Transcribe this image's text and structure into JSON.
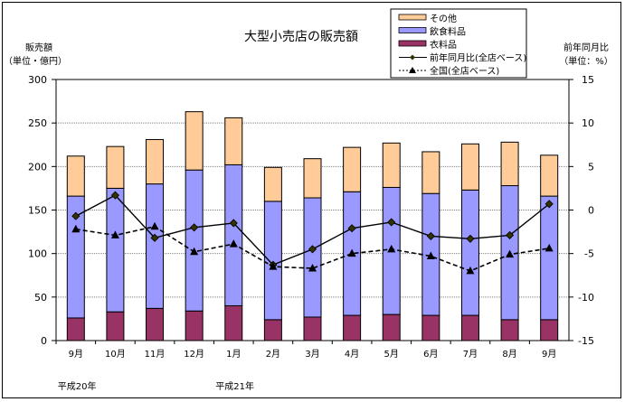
{
  "chart_data": {
    "type": "bar",
    "title": "大型小売店の販売額",
    "left_axis": {
      "label_line1": "販売額",
      "label_line2": "（単位・億円）",
      "range": [
        0,
        300
      ],
      "ticks": [
        "0",
        "50",
        "100",
        "150",
        "200",
        "250",
        "300"
      ],
      "tick_values": [
        0,
        50,
        100,
        150,
        200,
        250,
        300
      ]
    },
    "right_axis": {
      "label_line1": "前年同月比",
      "label_line2": "（単位：%）",
      "range": [
        -15,
        15
      ],
      "ticks": [
        "-15",
        "-10",
        "-5",
        "0",
        "5",
        "10",
        "15"
      ],
      "tick_values": [
        -15,
        -10,
        -5,
        0,
        5,
        10,
        15
      ]
    },
    "grid": true,
    "legend_position": "top-right",
    "categories": [
      "9月",
      "10月",
      "11月",
      "12月",
      "1月",
      "2月",
      "3月",
      "4月",
      "5月",
      "6月",
      "7月",
      "8月",
      "9月"
    ],
    "era_labels": [
      {
        "text": "平成20年",
        "category_index": 0
      },
      {
        "text": "平成21年",
        "category_index": 4
      }
    ],
    "stacked_series": [
      {
        "name": "衣料品",
        "color": "#993366",
        "values": [
          26,
          33,
          37,
          34,
          40,
          24,
          27,
          29,
          30,
          29,
          29,
          24,
          24
        ]
      },
      {
        "name": "飲食料品",
        "color": "#9999ff",
        "values": [
          140,
          142,
          143,
          162,
          162,
          136,
          137,
          142,
          146,
          140,
          144,
          154,
          142
        ]
      },
      {
        "name": "その他",
        "color": "#ffcc99",
        "values": [
          46,
          48,
          51,
          67,
          54,
          39,
          45,
          51,
          51,
          48,
          53,
          50,
          47
        ]
      }
    ],
    "line_series": [
      {
        "name": "前年同月比(全店ベース)",
        "marker": "diamond",
        "dash": "solid",
        "axis": "right",
        "values": [
          -0.7,
          1.7,
          -3.2,
          -2.0,
          -1.5,
          -6.3,
          -4.5,
          -2.1,
          -1.4,
          -3.0,
          -3.3,
          -2.9,
          0.7
        ]
      },
      {
        "name": "全国(全店ベース)",
        "marker": "triangle",
        "dash": "dashed",
        "axis": "right",
        "values": [
          -2.2,
          -2.9,
          -1.9,
          -4.8,
          -3.9,
          -6.5,
          -6.7,
          -5.0,
          -4.5,
          -5.3,
          -7.0,
          -5.1,
          -4.4
        ]
      }
    ],
    "legend": [
      {
        "label": "その他",
        "kind": "bar",
        "color": "#ffcc99"
      },
      {
        "label": "飲食料品",
        "kind": "bar",
        "color": "#9999ff"
      },
      {
        "label": "衣料品",
        "kind": "bar",
        "color": "#993366"
      },
      {
        "label": "前年同月比(全店ベース)",
        "kind": "line-diamond"
      },
      {
        "label": "全国(全店ベース)",
        "kind": "line-triangle-dashed"
      }
    ]
  }
}
